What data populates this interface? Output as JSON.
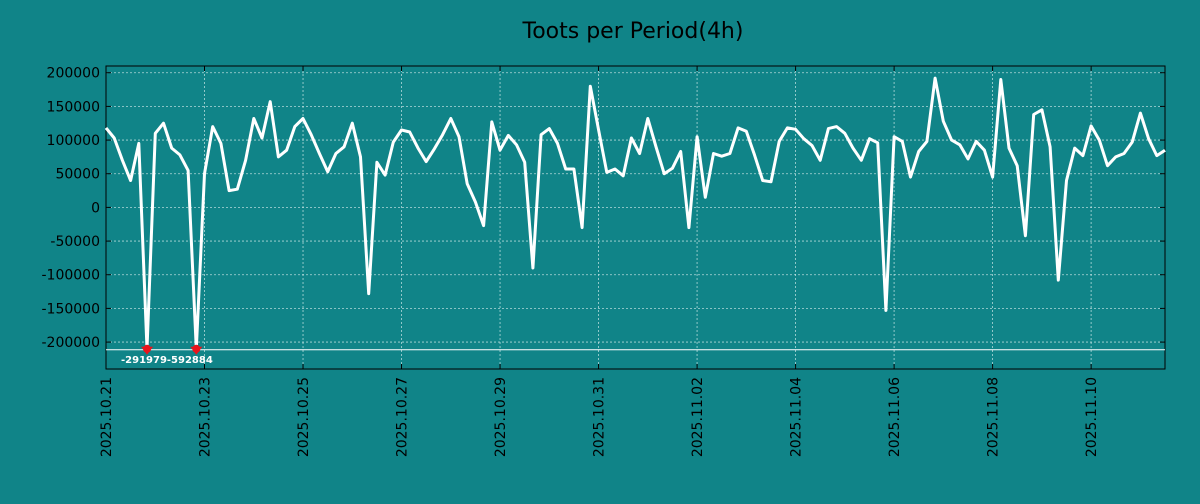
{
  "chart_data": {
    "type": "line",
    "title": "Toots per Period(4h)",
    "xlabel": "",
    "ylabel": "",
    "grid": true,
    "colors": {
      "background": "#108488",
      "line": "#ffffff",
      "grid": "#d8eeee",
      "axis": "#000000",
      "marker": "#e8141c",
      "clip_line": "#ffffff"
    },
    "xlim": [
      0,
      129
    ],
    "ylim": [
      -240000,
      210000
    ],
    "yticks": [
      200000,
      150000,
      100000,
      50000,
      0,
      -50000,
      -100000,
      -150000,
      -200000
    ],
    "xticks": [
      {
        "x": 0,
        "label": "2025.10.21"
      },
      {
        "x": 12,
        "label": "2025.10.23"
      },
      {
        "x": 24,
        "label": "2025.10.25"
      },
      {
        "x": 36,
        "label": "2025.10.27"
      },
      {
        "x": 48,
        "label": "2025.10.29"
      },
      {
        "x": 60,
        "label": "2025.10.31"
      },
      {
        "x": 72,
        "label": "2025.11.02"
      },
      {
        "x": 84,
        "label": "2025.11.04"
      },
      {
        "x": 96,
        "label": "2025.11.06"
      },
      {
        "x": 108,
        "label": "2025.11.08"
      },
      {
        "x": 120,
        "label": "2025.11.10"
      }
    ],
    "clip_value": -210000,
    "series": [
      {
        "name": "toots",
        "values": [
          118000,
          103000,
          70000,
          40000,
          95000,
          -210000,
          110000,
          125000,
          88000,
          78000,
          55000,
          -210000,
          50000,
          120000,
          95000,
          25000,
          27000,
          70000,
          132000,
          103000,
          157000,
          75000,
          85000,
          120000,
          132000,
          108000,
          80000,
          53000,
          80000,
          90000,
          125000,
          75000,
          -128000,
          67000,
          48000,
          97000,
          115000,
          112000,
          88000,
          68000,
          87000,
          108000,
          132000,
          105000,
          35000,
          8000,
          -27000,
          127000,
          85000,
          107000,
          93000,
          67000,
          -90000,
          108000,
          117000,
          95000,
          57000,
          57000,
          -30000,
          180000,
          115000,
          52000,
          57000,
          47000,
          103000,
          80000,
          132000,
          90000,
          50000,
          58000,
          83000,
          -30000,
          105000,
          15000,
          80000,
          76000,
          80000,
          118000,
          113000,
          78000,
          40000,
          38000,
          98000,
          118000,
          116000,
          102000,
          92000,
          70000,
          117000,
          120000,
          110000,
          88000,
          70000,
          102000,
          96000,
          -153000,
          105000,
          98000,
          45000,
          83000,
          98000,
          192000,
          128000,
          100000,
          93000,
          72000,
          98000,
          85000,
          45000,
          190000,
          88000,
          62000,
          -42000,
          138000,
          145000,
          90000,
          -108000,
          40000,
          88000,
          77000,
          121000,
          100000,
          62000,
          75000,
          80000,
          97000,
          140000,
          102000,
          77000,
          85000
        ]
      }
    ],
    "clipped_points": [
      {
        "x": 5,
        "value": -291979
      },
      {
        "x": 11,
        "value": -592884
      }
    ],
    "annotation": "-291979-592884"
  }
}
